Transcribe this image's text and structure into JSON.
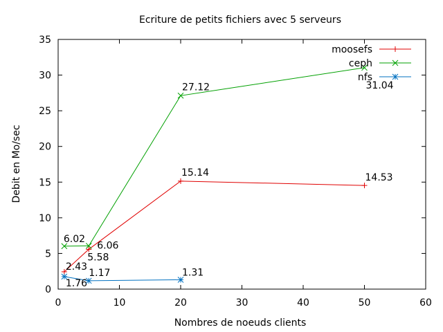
{
  "chart_data": {
    "type": "line",
    "title": "Ecriture de petits fichiers avec 5 serveurs",
    "xlabel": "Nombres de noeuds clients",
    "ylabel": "Debit en Mo/sec",
    "xlim": [
      0,
      60
    ],
    "ylim": [
      0,
      35
    ],
    "xticks": [
      0,
      10,
      20,
      30,
      40,
      50,
      60
    ],
    "yticks": [
      0,
      5,
      10,
      15,
      20,
      25,
      30,
      35
    ],
    "grid": false,
    "legend": "top-right",
    "series": [
      {
        "name": "moosefs",
        "color": "#e00000",
        "marker": "plus",
        "x": [
          1,
          5,
          20,
          50
        ],
        "y": [
          2.43,
          5.58,
          15.14,
          14.53
        ],
        "labels": [
          "2.43",
          "5.58",
          "15.14",
          "14.53"
        ]
      },
      {
        "name": "ceph",
        "color": "#00a000",
        "marker": "cross",
        "x": [
          1,
          5,
          20,
          50
        ],
        "y": [
          6.02,
          6.06,
          27.12,
          31.04
        ],
        "labels": [
          "6.02",
          "6.06",
          "27.12",
          "31.04"
        ]
      },
      {
        "name": "nfs",
        "color": "#0070c0",
        "marker": "star",
        "x": [
          1,
          5,
          20
        ],
        "y": [
          1.76,
          1.17,
          1.31
        ],
        "labels": [
          "1.76",
          "1.17",
          "1.31"
        ]
      }
    ]
  }
}
